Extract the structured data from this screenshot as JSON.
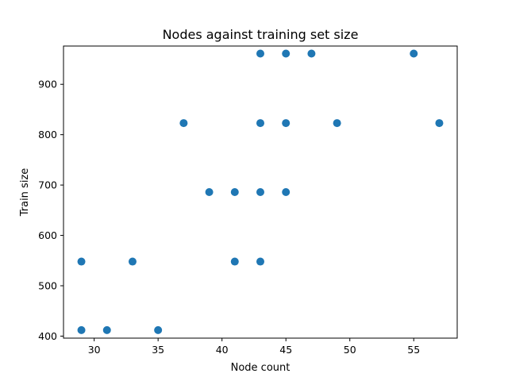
{
  "chart_data": {
    "type": "scatter",
    "title": "Nodes against training set size",
    "xlabel": "Node count",
    "ylabel": "Train size",
    "xlim": [
      27.6,
      58.4
    ],
    "ylim": [
      396,
      976
    ],
    "xticks": [
      30,
      35,
      40,
      45,
      50,
      55
    ],
    "yticks": [
      400,
      500,
      600,
      700,
      800,
      900
    ],
    "grid": false,
    "color": "#1f77b4",
    "points": [
      {
        "x": 29,
        "y": 412
      },
      {
        "x": 31,
        "y": 412
      },
      {
        "x": 35,
        "y": 412
      },
      {
        "x": 29,
        "y": 548
      },
      {
        "x": 33,
        "y": 548
      },
      {
        "x": 41,
        "y": 548
      },
      {
        "x": 43,
        "y": 548
      },
      {
        "x": 39,
        "y": 686
      },
      {
        "x": 41,
        "y": 686
      },
      {
        "x": 43,
        "y": 686
      },
      {
        "x": 45,
        "y": 686
      },
      {
        "x": 37,
        "y": 823
      },
      {
        "x": 43,
        "y": 823
      },
      {
        "x": 45,
        "y": 823
      },
      {
        "x": 49,
        "y": 823
      },
      {
        "x": 57,
        "y": 823
      },
      {
        "x": 43,
        "y": 961
      },
      {
        "x": 45,
        "y": 961
      },
      {
        "x": 47,
        "y": 961
      },
      {
        "x": 55,
        "y": 961
      }
    ]
  }
}
